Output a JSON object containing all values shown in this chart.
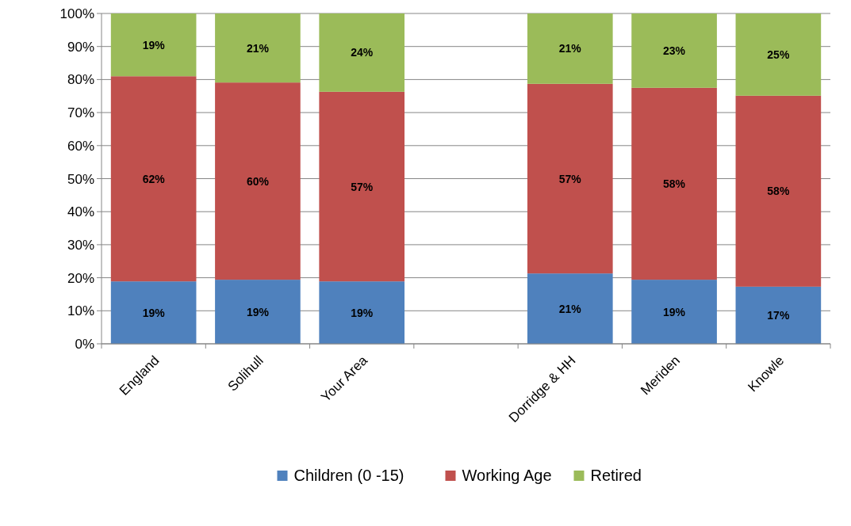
{
  "chart_data": {
    "type": "bar",
    "stacked": true,
    "categories": [
      "England",
      "Solihull",
      "Your Area",
      null,
      "Dorridge & HH",
      "Meriden",
      "Knowle"
    ],
    "series": [
      {
        "name": "Children (0 -15)",
        "color": "#4f81bd",
        "values": [
          18.9,
          19.4,
          18.9,
          null,
          21.3,
          19.4,
          17.3
        ],
        "value_labels": [
          "19%",
          "19%",
          "19%",
          null,
          "21%",
          "19%",
          "17%"
        ]
      },
      {
        "name": "Working Age",
        "color": "#c0504d",
        "values": [
          62.1,
          59.7,
          57.4,
          null,
          57.4,
          58.1,
          57.8
        ],
        "value_labels": [
          "62%",
          "60%",
          "57%",
          null,
          "57%",
          "58%",
          "58%"
        ]
      },
      {
        "name": "Retired",
        "color": "#9bbb59",
        "values": [
          19.0,
          20.9,
          23.7,
          null,
          21.3,
          22.5,
          24.9
        ],
        "value_labels": [
          "19%",
          "21%",
          "24%",
          null,
          "21%",
          "23%",
          "25%"
        ]
      }
    ],
    "ylim": [
      0,
      100
    ],
    "yticks": [
      {
        "value": 0,
        "label": "0%"
      },
      {
        "value": 10,
        "label": "10%"
      },
      {
        "value": 20,
        "label": "20%"
      },
      {
        "value": 30,
        "label": "30%"
      },
      {
        "value": 40,
        "label": "40%"
      },
      {
        "value": 50,
        "label": "50%"
      },
      {
        "value": 60,
        "label": "60%"
      },
      {
        "value": 70,
        "label": "70%"
      },
      {
        "value": 80,
        "label": "80%"
      },
      {
        "value": 90,
        "label": "90%"
      },
      {
        "value": 100,
        "label": "100%"
      }
    ],
    "grid": "y",
    "legend": "bottom"
  }
}
